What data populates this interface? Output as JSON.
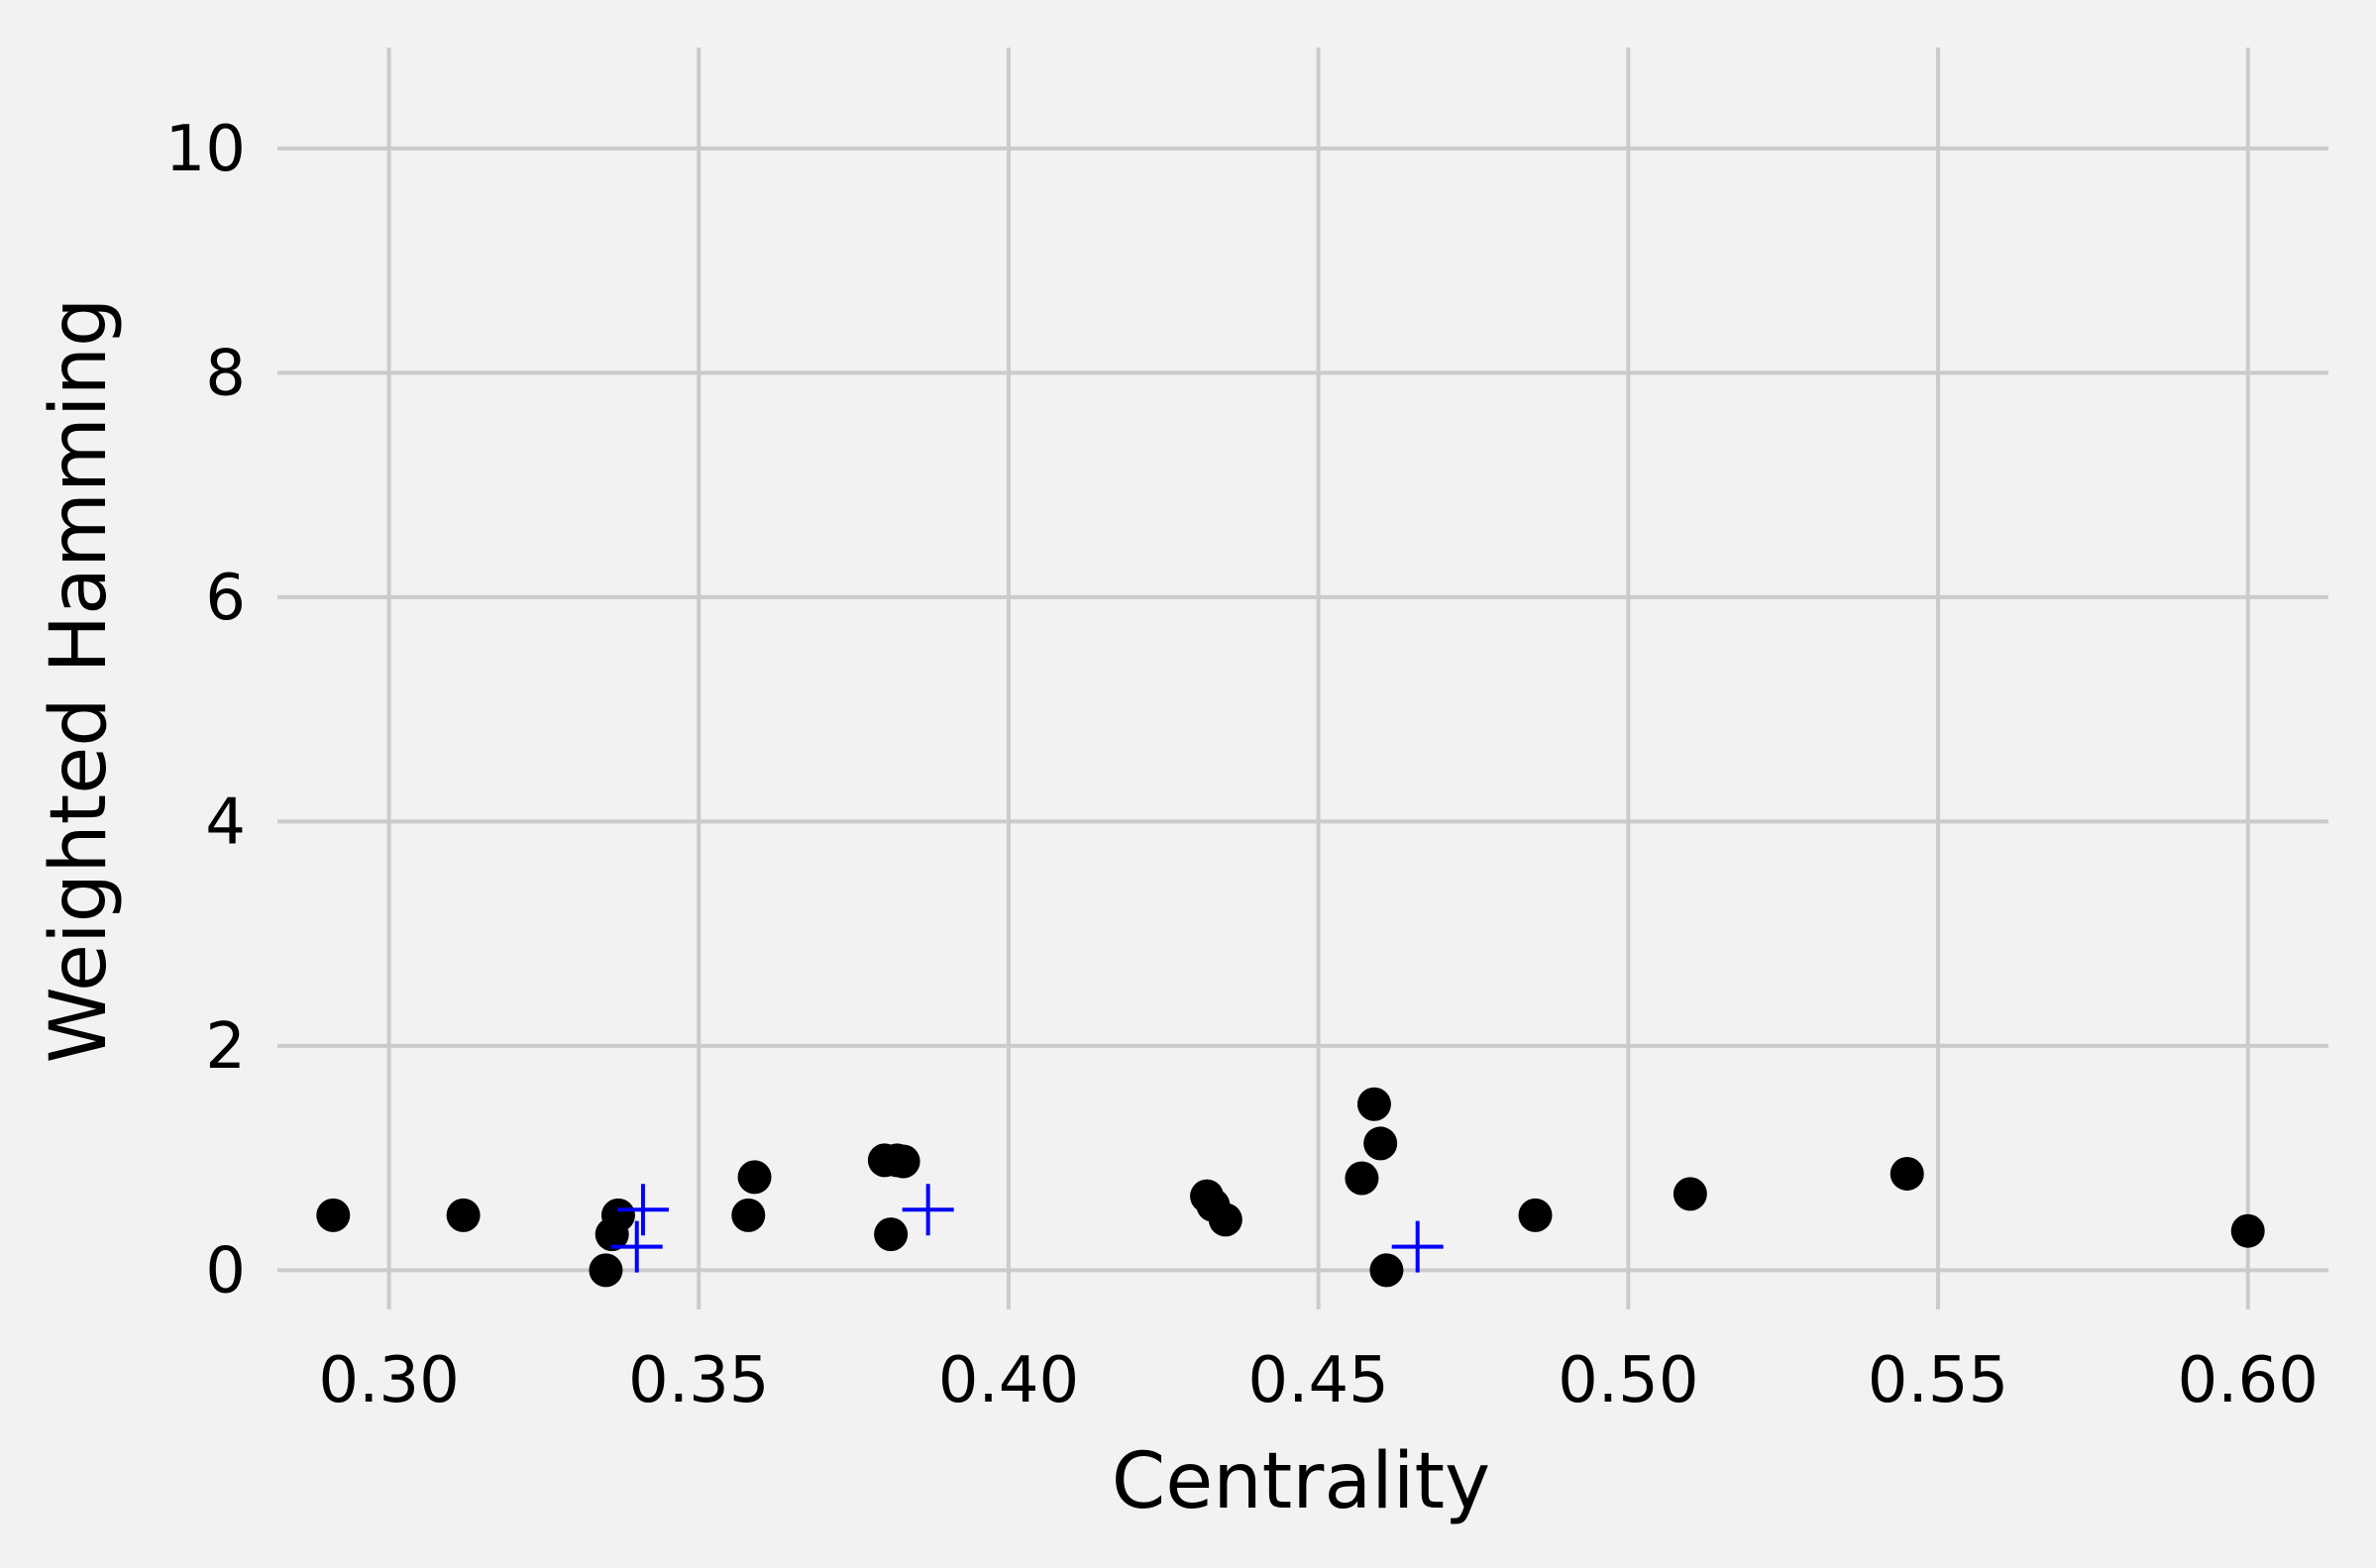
{
  "chart_data": {
    "type": "scatter",
    "title": "",
    "xlabel": "Centrality",
    "ylabel": "Weighted Hamming",
    "xlim": [
      0.282,
      0.613
    ],
    "ylim": [
      -0.35,
      10.9
    ],
    "xticks": [
      0.3,
      0.35,
      0.4,
      0.45,
      0.5,
      0.55,
      0.6
    ],
    "xtick_labels": [
      "0.30",
      "0.35",
      "0.40",
      "0.45",
      "0.50",
      "0.55",
      "0.60"
    ],
    "yticks": [
      0,
      2,
      4,
      6,
      8,
      10
    ],
    "ytick_labels": [
      "0",
      "2",
      "4",
      "6",
      "8",
      "10"
    ],
    "grid": true,
    "colors": {
      "background": "#f2f2f2",
      "grid": "#cbcbcb",
      "dots": "#000000",
      "plus": "#0000ff"
    },
    "series": [
      {
        "marker": "circle",
        "color": "#000000",
        "points": [
          [
            0.291,
            0.49
          ],
          [
            0.312,
            0.49
          ],
          [
            0.335,
            0.0
          ],
          [
            0.336,
            0.32
          ],
          [
            0.337,
            0.49
          ],
          [
            0.358,
            0.49
          ],
          [
            0.359,
            0.83
          ],
          [
            0.38,
            0.98
          ],
          [
            0.382,
            0.98
          ],
          [
            0.383,
            0.97
          ],
          [
            0.381,
            0.32
          ],
          [
            0.432,
            0.66
          ],
          [
            0.433,
            0.58
          ],
          [
            0.435,
            0.45
          ],
          [
            0.457,
            0.82
          ],
          [
            0.459,
            1.48
          ],
          [
            0.46,
            1.13
          ],
          [
            0.461,
            0.0
          ],
          [
            0.485,
            0.49
          ],
          [
            0.51,
            0.68
          ],
          [
            0.545,
            0.86
          ],
          [
            0.6,
            0.35
          ]
        ]
      },
      {
        "marker": "plus",
        "color": "#0000ff",
        "points": [
          [
            0.341,
            0.54
          ],
          [
            0.34,
            0.21
          ],
          [
            0.387,
            0.54
          ],
          [
            0.466,
            0.21
          ]
        ]
      }
    ]
  }
}
